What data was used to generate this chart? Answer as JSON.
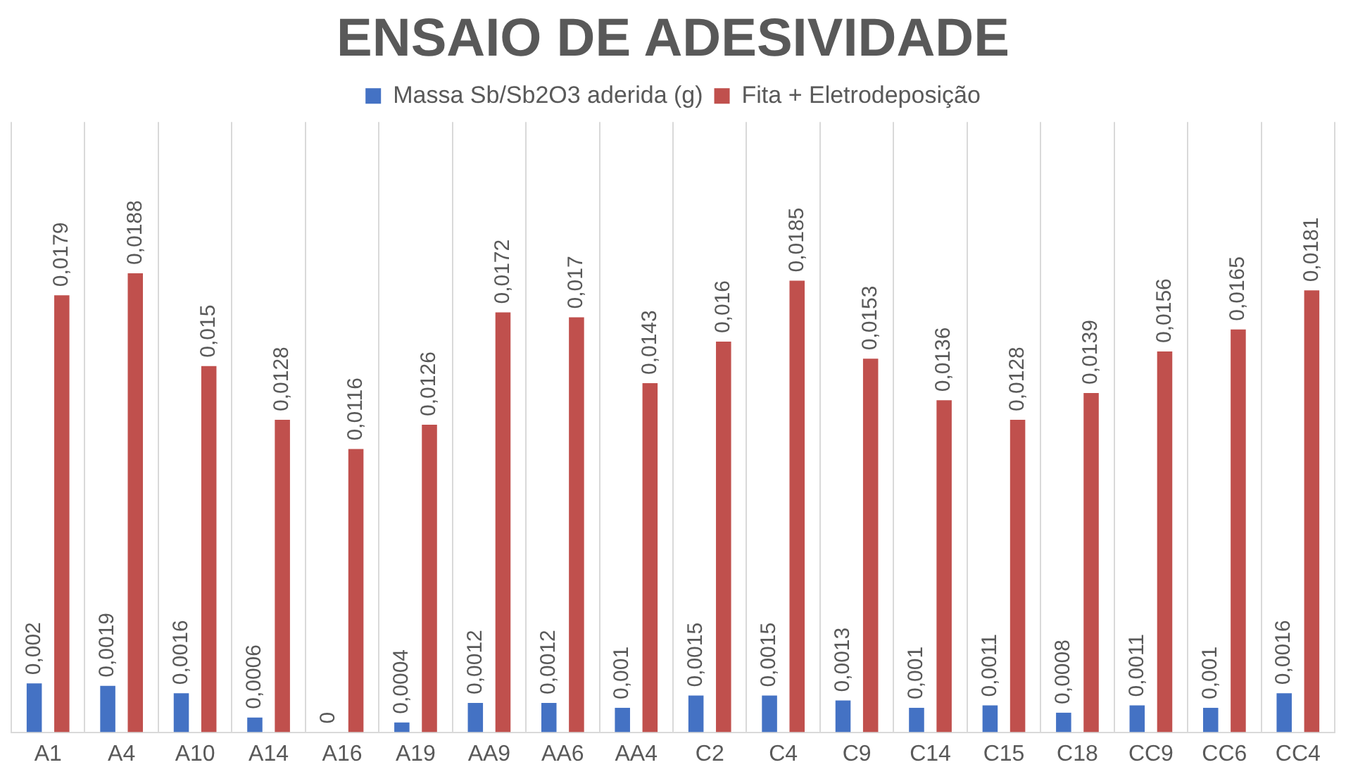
{
  "chart_data": {
    "type": "bar",
    "title": "ENSAIO DE ADESIVIDADE",
    "categories": [
      "A1",
      "A4",
      "A10",
      "A14",
      "A16",
      "A19",
      "AA9",
      "AA6",
      "AA4",
      "C2",
      "C4",
      "C9",
      "C14",
      "C15",
      "C18",
      "CC9",
      "CC6",
      "CC4"
    ],
    "series": [
      {
        "name": "Massa Sb/Sb2O3 aderida (g)",
        "color": "#4472c4",
        "values": [
          0.002,
          0.0019,
          0.0016,
          0.0006,
          0,
          0.0004,
          0.0012,
          0.0012,
          0.001,
          0.0015,
          0.0015,
          0.0013,
          0.001,
          0.0011,
          0.0008,
          0.0011,
          0.001,
          0.0016
        ],
        "value_labels": [
          "0,002",
          "0,0019",
          "0,0016",
          "0,0006",
          "0",
          "0,0004",
          "0,0012",
          "0,0012",
          "0,001",
          "0,0015",
          "0,0015",
          "0,0013",
          "0,001",
          "0,0011",
          "0,0008",
          "0,0011",
          "0,001",
          "0,0016"
        ]
      },
      {
        "name": "Fita + Eletrodeposição",
        "color": "#c0504d",
        "values": [
          0.0179,
          0.0188,
          0.015,
          0.0128,
          0.0116,
          0.0126,
          0.0172,
          0.017,
          0.0143,
          0.016,
          0.0185,
          0.0153,
          0.0136,
          0.0128,
          0.0139,
          0.0156,
          0.0165,
          0.0181
        ],
        "value_labels": [
          "0,0179",
          "0,0188",
          "0,015",
          "0,0128",
          "0,0116",
          "0,0126",
          "0,0172",
          "0,017",
          "0,0143",
          "0,016",
          "0,0185",
          "0,0153",
          "0,0136",
          "0,0128",
          "0,0139",
          "0,0156",
          "0,0165",
          "0,0181"
        ]
      }
    ],
    "grid": "x",
    "legend": "top"
  }
}
